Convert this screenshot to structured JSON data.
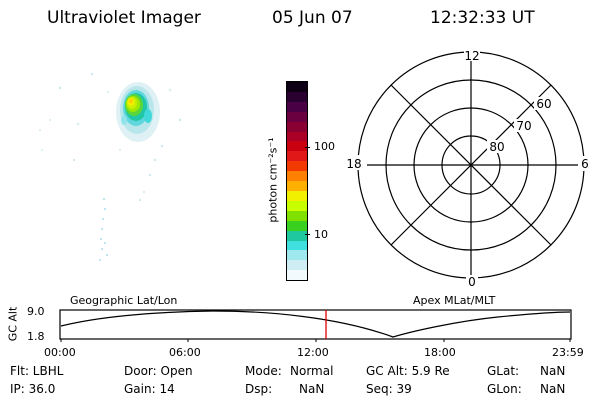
{
  "header": {
    "title": "Ultraviolet Imager",
    "date": "05 Jun 07",
    "time": "12:32:33 UT"
  },
  "colorbar": {
    "label": "photon cm⁻²s⁻¹",
    "ticks": [
      "100",
      "10"
    ],
    "colors": [
      "#0d0015",
      "#2a0030",
      "#4a0045",
      "#6a0040",
      "#8a0033",
      "#aa0025",
      "#c80010",
      "#e01818",
      "#f23a00",
      "#ff8000",
      "#ffb000",
      "#f0f000",
      "#c8ff00",
      "#80e000",
      "#3ad020",
      "#20c8a0",
      "#40e0e0",
      "#9fe8ee",
      "#cfeef4",
      "#f2fafd"
    ]
  },
  "polar": {
    "mlt_labels": {
      "top": "12",
      "left": "18",
      "right": "6",
      "bottom": "0"
    },
    "mlat_labels": [
      "60",
      "70",
      "80"
    ]
  },
  "timeline": {
    "left_title": "Geographic Lat/Lon",
    "right_title": "Apex MLat/MLT",
    "ylabel": "GC Alt",
    "y_ticks": [
      "9.0",
      "1.8"
    ],
    "x_ticks": [
      "00:00",
      "06:00",
      "12:00",
      "18:00",
      "23:59"
    ],
    "marker_color": "#e00000",
    "line_color": "#000000"
  },
  "info": {
    "flt": "Flt: LBHL",
    "ip": "IP: 36.0",
    "door": "Door: Open",
    "gain": "Gain: 14",
    "mode_label": "Mode:",
    "mode_value": "Normal",
    "dsp_label": "Dsp:",
    "dsp_value": "NaN",
    "gcalt": "GC Alt: 5.9 Re",
    "seq": "Seq: 39",
    "glat_label": "GLat:",
    "glat_value": "NaN",
    "glon_label": "GLon:",
    "glon_value": "NaN"
  }
}
